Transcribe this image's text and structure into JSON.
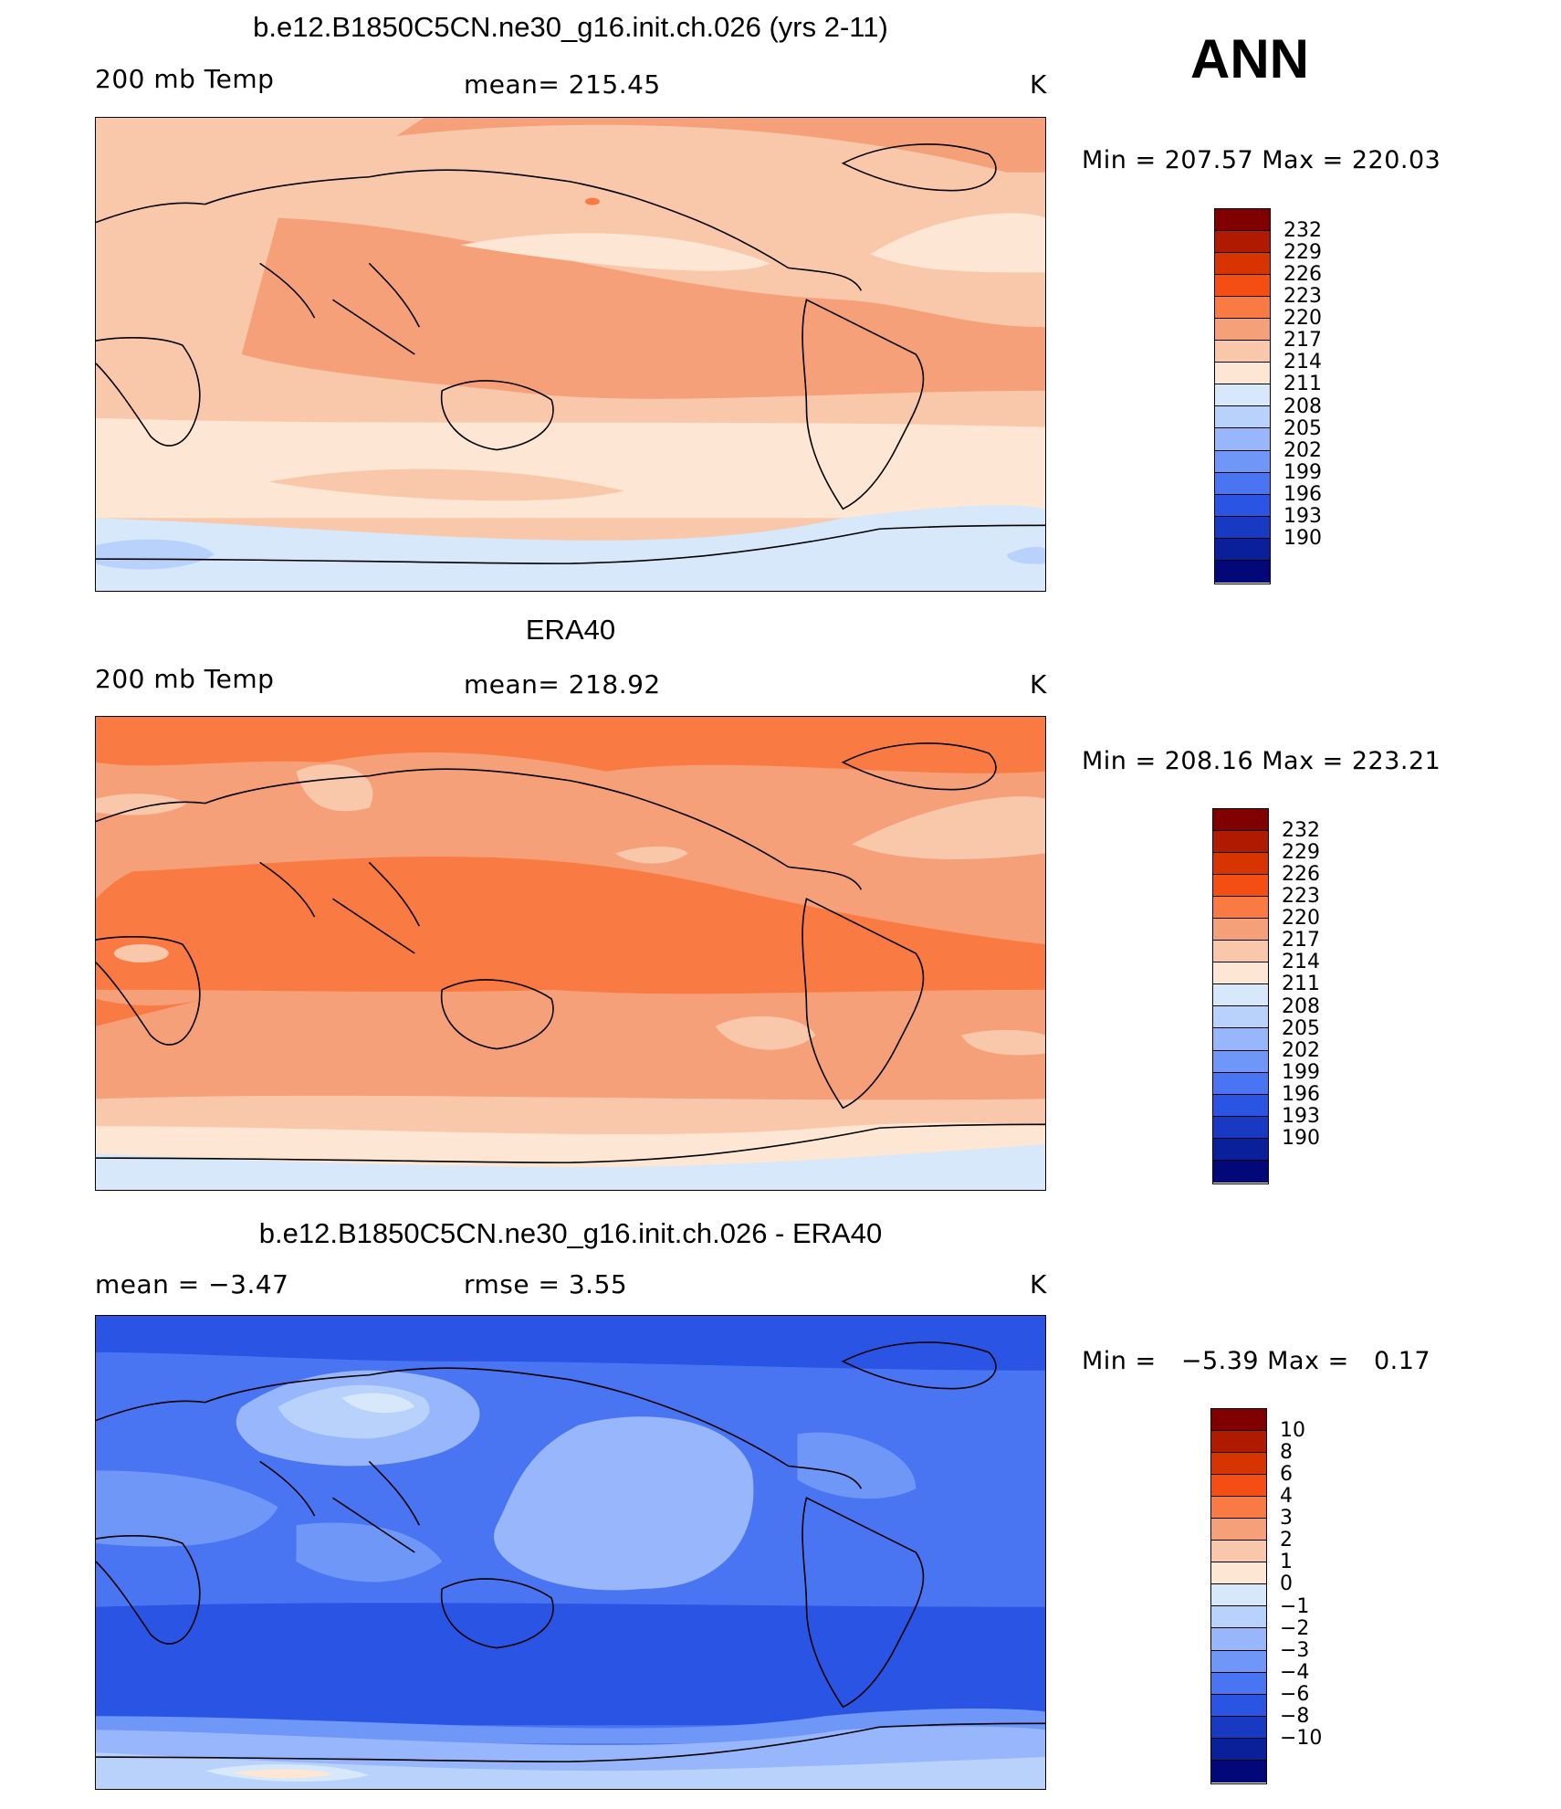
{
  "panel1": {
    "title": "b.e12.B1850C5CN.ne30_g16.init.ch.026 (yrs 2-11)",
    "left_label": "200 mb Temp",
    "center_label": "mean= 215.45",
    "unit": "K",
    "minmax": "Min = 207.57 Max = 220.03"
  },
  "season": "ANN",
  "panel2": {
    "title": "ERA40",
    "left_label": "200 mb Temp",
    "center_label": "mean= 218.92",
    "unit": "K",
    "minmax": "Min = 208.16 Max = 223.21"
  },
  "panel3": {
    "title": "b.e12.B1850C5CN.ne30_g16.init.ch.026 - ERA40",
    "left_label": "mean =   −3.47",
    "center_label": "rmse =   3.55",
    "unit": "K",
    "minmax": "Min =   −5.39 Max =   0.17"
  },
  "colorbars": {
    "colors": [
      "#800000",
      "#b01a00",
      "#d83400",
      "#f44e14",
      "#fa7a44",
      "#f6a07a",
      "#f9c8ab",
      "#fde6d3",
      "#d6e8fa",
      "#b9d2fb",
      "#97b6fb",
      "#6e97f8",
      "#4a75f2",
      "#2a55e4",
      "#1839c2",
      "#0a209a",
      "#020878"
    ],
    "abs_ticks": [
      "232",
      "229",
      "226",
      "223",
      "220",
      "217",
      "214",
      "211",
      "208",
      "205",
      "202",
      "199",
      "196",
      "193",
      "190"
    ],
    "diff_ticks": [
      "10",
      "8",
      "6",
      "4",
      "3",
      "2",
      "1",
      "0",
      "−1",
      "−2",
      "−3",
      "−4",
      "−6",
      "−8",
      "−10"
    ]
  },
  "map_colors": {
    "p1": {
      "high": "#f6a07a",
      "mid": "#f9c8ab",
      "low": "#fde6d3",
      "pole": "#d6e8fa",
      "cold": "#b9d2fb",
      "hot": "#fa7a44"
    },
    "p2": {
      "hot": "#fa7a44",
      "high": "#f6a07a",
      "mid": "#f9c8ab",
      "low": "#fde6d3",
      "pole": "#d6e8fa",
      "warm": "#fa7a44"
    },
    "p3": {
      "d6": "#4a75f2",
      "d4": "#6e97f8",
      "d3": "#97b6fb",
      "d2": "#b9d2fb",
      "d1": "#d6e8fa",
      "d8": "#2a55e4",
      "zero": "#fde6d3"
    }
  }
}
